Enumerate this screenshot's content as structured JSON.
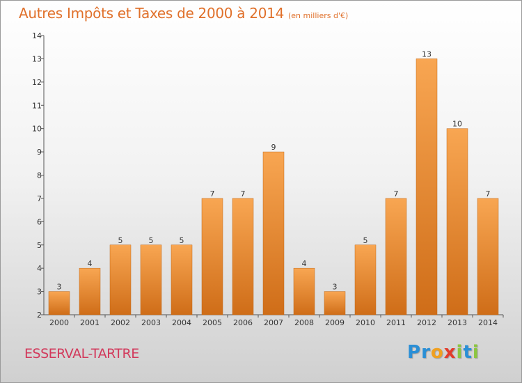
{
  "title": "Autres Impôts et Taxes de 2000 à 2014",
  "unit_label": "(en milliers d'€)",
  "commune": "ESSERVAL-TARTRE",
  "logo": {
    "letters": [
      {
        "char": "P",
        "color": "#2a8fd6"
      },
      {
        "char": "r",
        "color": "#2a8fd6"
      },
      {
        "char": "o",
        "color": "#f0a020"
      },
      {
        "char": "x",
        "color": "#e23c2c"
      },
      {
        "char": "i",
        "color": "#8cc63f"
      },
      {
        "char": "t",
        "color": "#2a8fd6"
      },
      {
        "char": "i",
        "color": "#8cc63f"
      }
    ]
  },
  "colors": {
    "bar_top": "#f8a652",
    "bar_bottom": "#cf6d18",
    "axis": "#555555",
    "text": "#333333"
  },
  "chart_data": {
    "type": "bar",
    "categories": [
      "2000",
      "2001",
      "2002",
      "2003",
      "2004",
      "2005",
      "2006",
      "2007",
      "2008",
      "2009",
      "2010",
      "2011",
      "2012",
      "2013",
      "2014"
    ],
    "values": [
      3,
      4,
      5,
      5,
      5,
      7,
      7,
      9,
      4,
      3,
      5,
      7,
      13,
      10,
      7
    ],
    "ylim": [
      2,
      14
    ],
    "yticks": [
      2,
      3,
      4,
      5,
      6,
      7,
      8,
      9,
      10,
      11,
      12,
      13,
      14
    ],
    "grid": false,
    "legend": "none"
  }
}
